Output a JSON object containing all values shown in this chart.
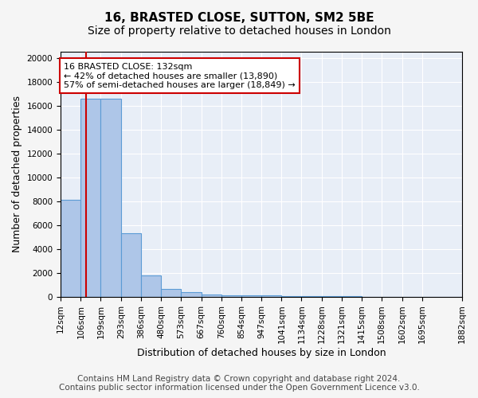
{
  "title": "16, BRASTED CLOSE, SUTTON, SM2 5BE",
  "subtitle": "Size of property relative to detached houses in London",
  "xlabel": "Distribution of detached houses by size in London",
  "ylabel": "Number of detached properties",
  "bar_values": [
    8100,
    16600,
    16600,
    5300,
    1800,
    650,
    380,
    230,
    160,
    130,
    110,
    80,
    60,
    50,
    40,
    30,
    25,
    20,
    15
  ],
  "bin_edges": [
    12,
    106,
    199,
    293,
    386,
    480,
    573,
    667,
    760,
    854,
    947,
    1041,
    1134,
    1228,
    1321,
    1415,
    1508,
    1602,
    1695,
    1882
  ],
  "tick_labels": [
    "12sqm",
    "106sqm",
    "199sqm",
    "293sqm",
    "386sqm",
    "480sqm",
    "573sqm",
    "667sqm",
    "760sqm",
    "854sqm",
    "947sqm",
    "1041sqm",
    "1134sqm",
    "1228sqm",
    "1321sqm",
    "1415sqm",
    "1508sqm",
    "1602sqm",
    "1695sqm",
    "1882sqm"
  ],
  "bar_color": "#aec6e8",
  "bar_edge_color": "#5b9bd5",
  "property_line_x": 132,
  "property_line_color": "#cc0000",
  "annotation_text": "16 BRASTED CLOSE: 132sqm\n← 42% of detached houses are smaller (13,890)\n57% of semi-detached houses are larger (18,849) →",
  "annotation_box_color": "#cc0000",
  "ylim": [
    0,
    20500
  ],
  "yticks": [
    0,
    2000,
    4000,
    6000,
    8000,
    10000,
    12000,
    14000,
    16000,
    18000,
    20000
  ],
  "background_color": "#e8eef7",
  "footer_line1": "Contains HM Land Registry data © Crown copyright and database right 2024.",
  "footer_line2": "Contains public sector information licensed under the Open Government Licence v3.0.",
  "grid_color": "#ffffff",
  "title_fontsize": 11,
  "subtitle_fontsize": 10,
  "xlabel_fontsize": 9,
  "ylabel_fontsize": 9,
  "tick_fontsize": 7.5,
  "footer_fontsize": 7.5
}
